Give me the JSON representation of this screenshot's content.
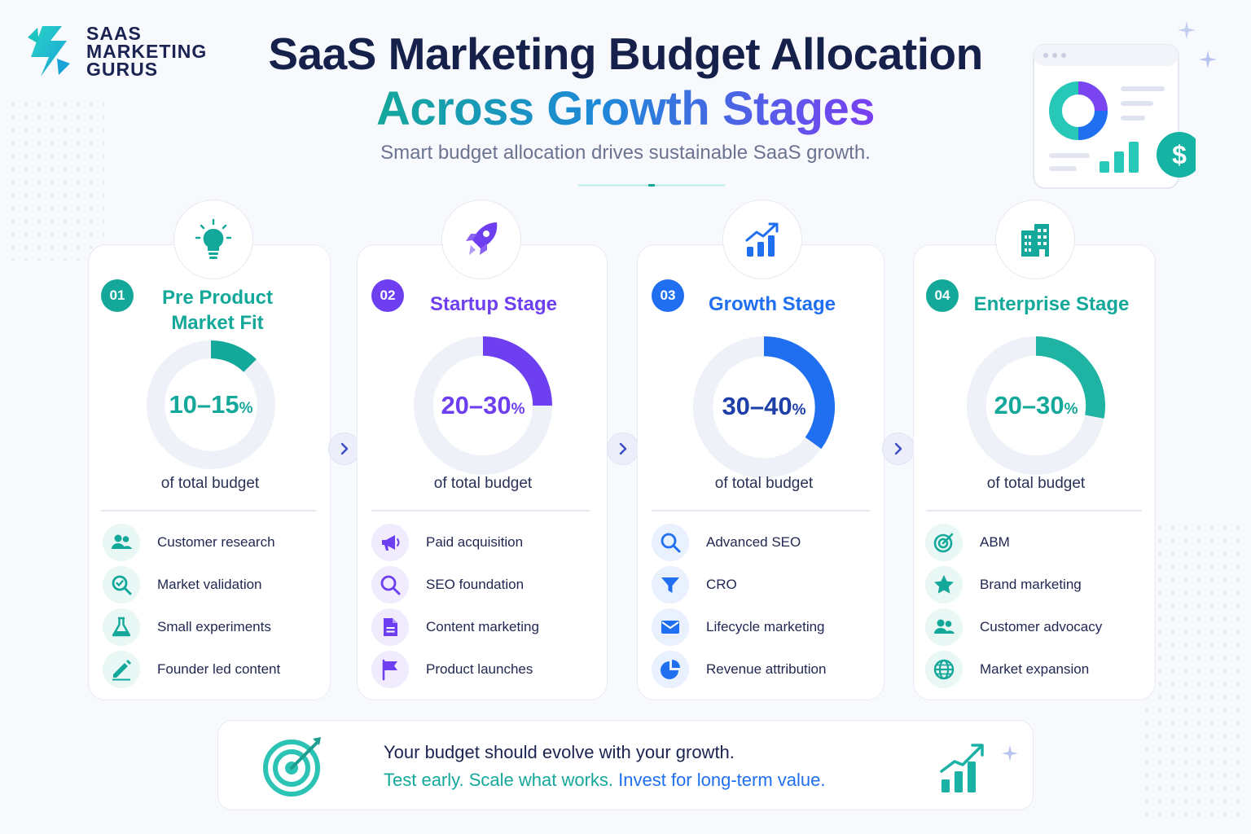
{
  "brand": {
    "line1": "SAAS",
    "line2": "MARKETING",
    "line3": "GURUS"
  },
  "header": {
    "title_line1": "SaaS Marketing Budget Allocation",
    "title_line2": "Across Growth Stages",
    "subtitle": "Smart budget allocation drives sustainable SaaS growth."
  },
  "stages": [
    {
      "num": "01",
      "title": "Pre Product Market Fit",
      "range": "10–15",
      "unit": "%",
      "budget_label": "of total budget",
      "share": 0.125,
      "color": "#14a89a",
      "items": [
        {
          "label": "Customer research",
          "icon": "users-icon"
        },
        {
          "label": "Market validation",
          "icon": "search-check-icon"
        },
        {
          "label": "Small experiments",
          "icon": "flask-icon"
        },
        {
          "label": "Founder led content",
          "icon": "pencil-icon"
        }
      ]
    },
    {
      "num": "02",
      "title": "Startup Stage",
      "range": "20–30",
      "unit": "%",
      "budget_label": "of total budget",
      "share": 0.25,
      "color": "#6e3ff0",
      "items": [
        {
          "label": "Paid acquisition",
          "icon": "megaphone-icon"
        },
        {
          "label": "SEO foundation",
          "icon": "search-icon"
        },
        {
          "label": "Content marketing",
          "icon": "document-icon"
        },
        {
          "label": "Product launches",
          "icon": "flag-icon"
        }
      ]
    },
    {
      "num": "03",
      "title": "Growth Stage",
      "range": "30–40",
      "unit": "%",
      "budget_label": "of total budget",
      "share": 0.35,
      "color": "#1f6ff0",
      "items": [
        {
          "label": "Advanced SEO",
          "icon": "search-icon"
        },
        {
          "label": "CRO",
          "icon": "funnel-icon"
        },
        {
          "label": "Lifecycle marketing",
          "icon": "envelope-icon"
        },
        {
          "label": "Revenue attribution",
          "icon": "pie-chart-icon"
        }
      ]
    },
    {
      "num": "04",
      "title": "Enterprise Stage",
      "range": "20–30",
      "unit": "%",
      "budget_label": "of total budget",
      "share": 0.28,
      "color": "#1fb3a4",
      "items": [
        {
          "label": "ABM",
          "icon": "target-icon"
        },
        {
          "label": "Brand marketing",
          "icon": "star-icon"
        },
        {
          "label": "Customer advocacy",
          "icon": "users-icon"
        },
        {
          "label": "Market expansion",
          "icon": "globe-icon"
        }
      ]
    }
  ],
  "footer": {
    "line1": "Your budget should evolve with your growth.",
    "line2_a": "Test early. Scale what works.",
    "line2_b": "Invest for long-term value."
  },
  "colors": {
    "teal": "#14a89a",
    "purple": "#6e3ff0",
    "blue": "#1f6ff0",
    "navy": "#15204b"
  }
}
